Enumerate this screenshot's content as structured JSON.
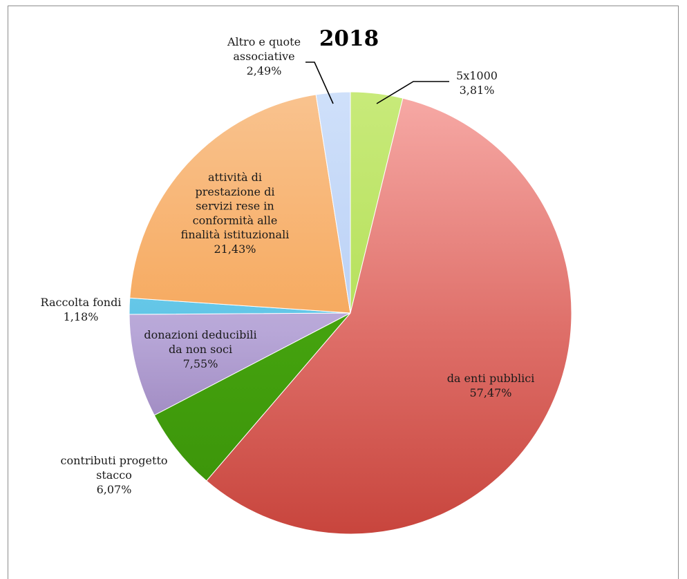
{
  "chart_data": {
    "type": "pie",
    "title": "2018",
    "legend": "none",
    "slices": [
      {
        "name": "5x1000",
        "value": 3.81,
        "label_lines": [
          "5x1000",
          "3,81%"
        ],
        "color": "#b5e05a",
        "color_light": "#c8ea7a",
        "color_dark": "#a6d44a"
      },
      {
        "name": "da enti pubblici",
        "value": 57.47,
        "label_lines": [
          "da enti pubblici",
          "57,47%"
        ],
        "color": "#de6e68",
        "color_light": "#f7aaa6",
        "color_dark": "#c8453d"
      },
      {
        "name": "contributi progetto stacco",
        "value": 6.07,
        "label_lines": [
          "contributi progetto",
          "stacco",
          "6,07%"
        ],
        "color": "#44a20e",
        "color_light": "#52ad16",
        "color_dark": "#3a9109"
      },
      {
        "name": "donazioni deducibili da non soci",
        "value": 7.55,
        "label_lines": [
          "donazioni deducibili",
          "da non soci",
          "7,55%"
        ],
        "color": "#b7a6d7",
        "color_light": "#d8cdee",
        "color_dark": "#8469a8"
      },
      {
        "name": "Raccolta fondi",
        "value": 1.18,
        "label_lines": [
          "Raccolta fondi",
          "1,18%"
        ],
        "color": "#5ec4e6",
        "color_light": "#8fd9f0",
        "color_dark": "#35b1dc"
      },
      {
        "name": "attività di prestazione di servizi rese in conformità alle finalità istituzionali",
        "value": 21.43,
        "label_lines": [
          "attività di",
          "prestazione di",
          "servizi rese in",
          "conformità alle",
          "finalità istituzionali",
          "21,43%"
        ],
        "color": "#f6a85c",
        "color_light": "#f9c38f",
        "color_dark": "#f28f2e"
      },
      {
        "name": "Altro e quote associative",
        "value": 2.49,
        "label_lines": [
          "Altro e quote",
          "associative",
          "2,49%"
        ],
        "color": "#b9d0f5",
        "color_light": "#cfe0fa",
        "color_dark": "#a7c2ef"
      }
    ]
  }
}
